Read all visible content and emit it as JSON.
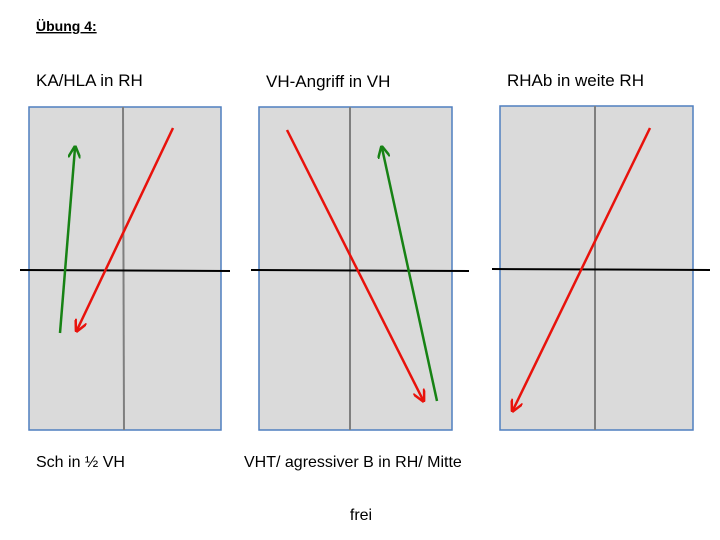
{
  "header": {
    "title": "Übung 4:"
  },
  "panels": [
    {
      "label": "KA/HLA in RH"
    },
    {
      "label": "VH-Angriff in VH"
    },
    {
      "label": "RHAb in weite RH"
    }
  ],
  "captions": [
    "Sch in ½ VH",
    "VHT/ agressiver B in RH/ Mitte",
    "frei"
  ]
}
